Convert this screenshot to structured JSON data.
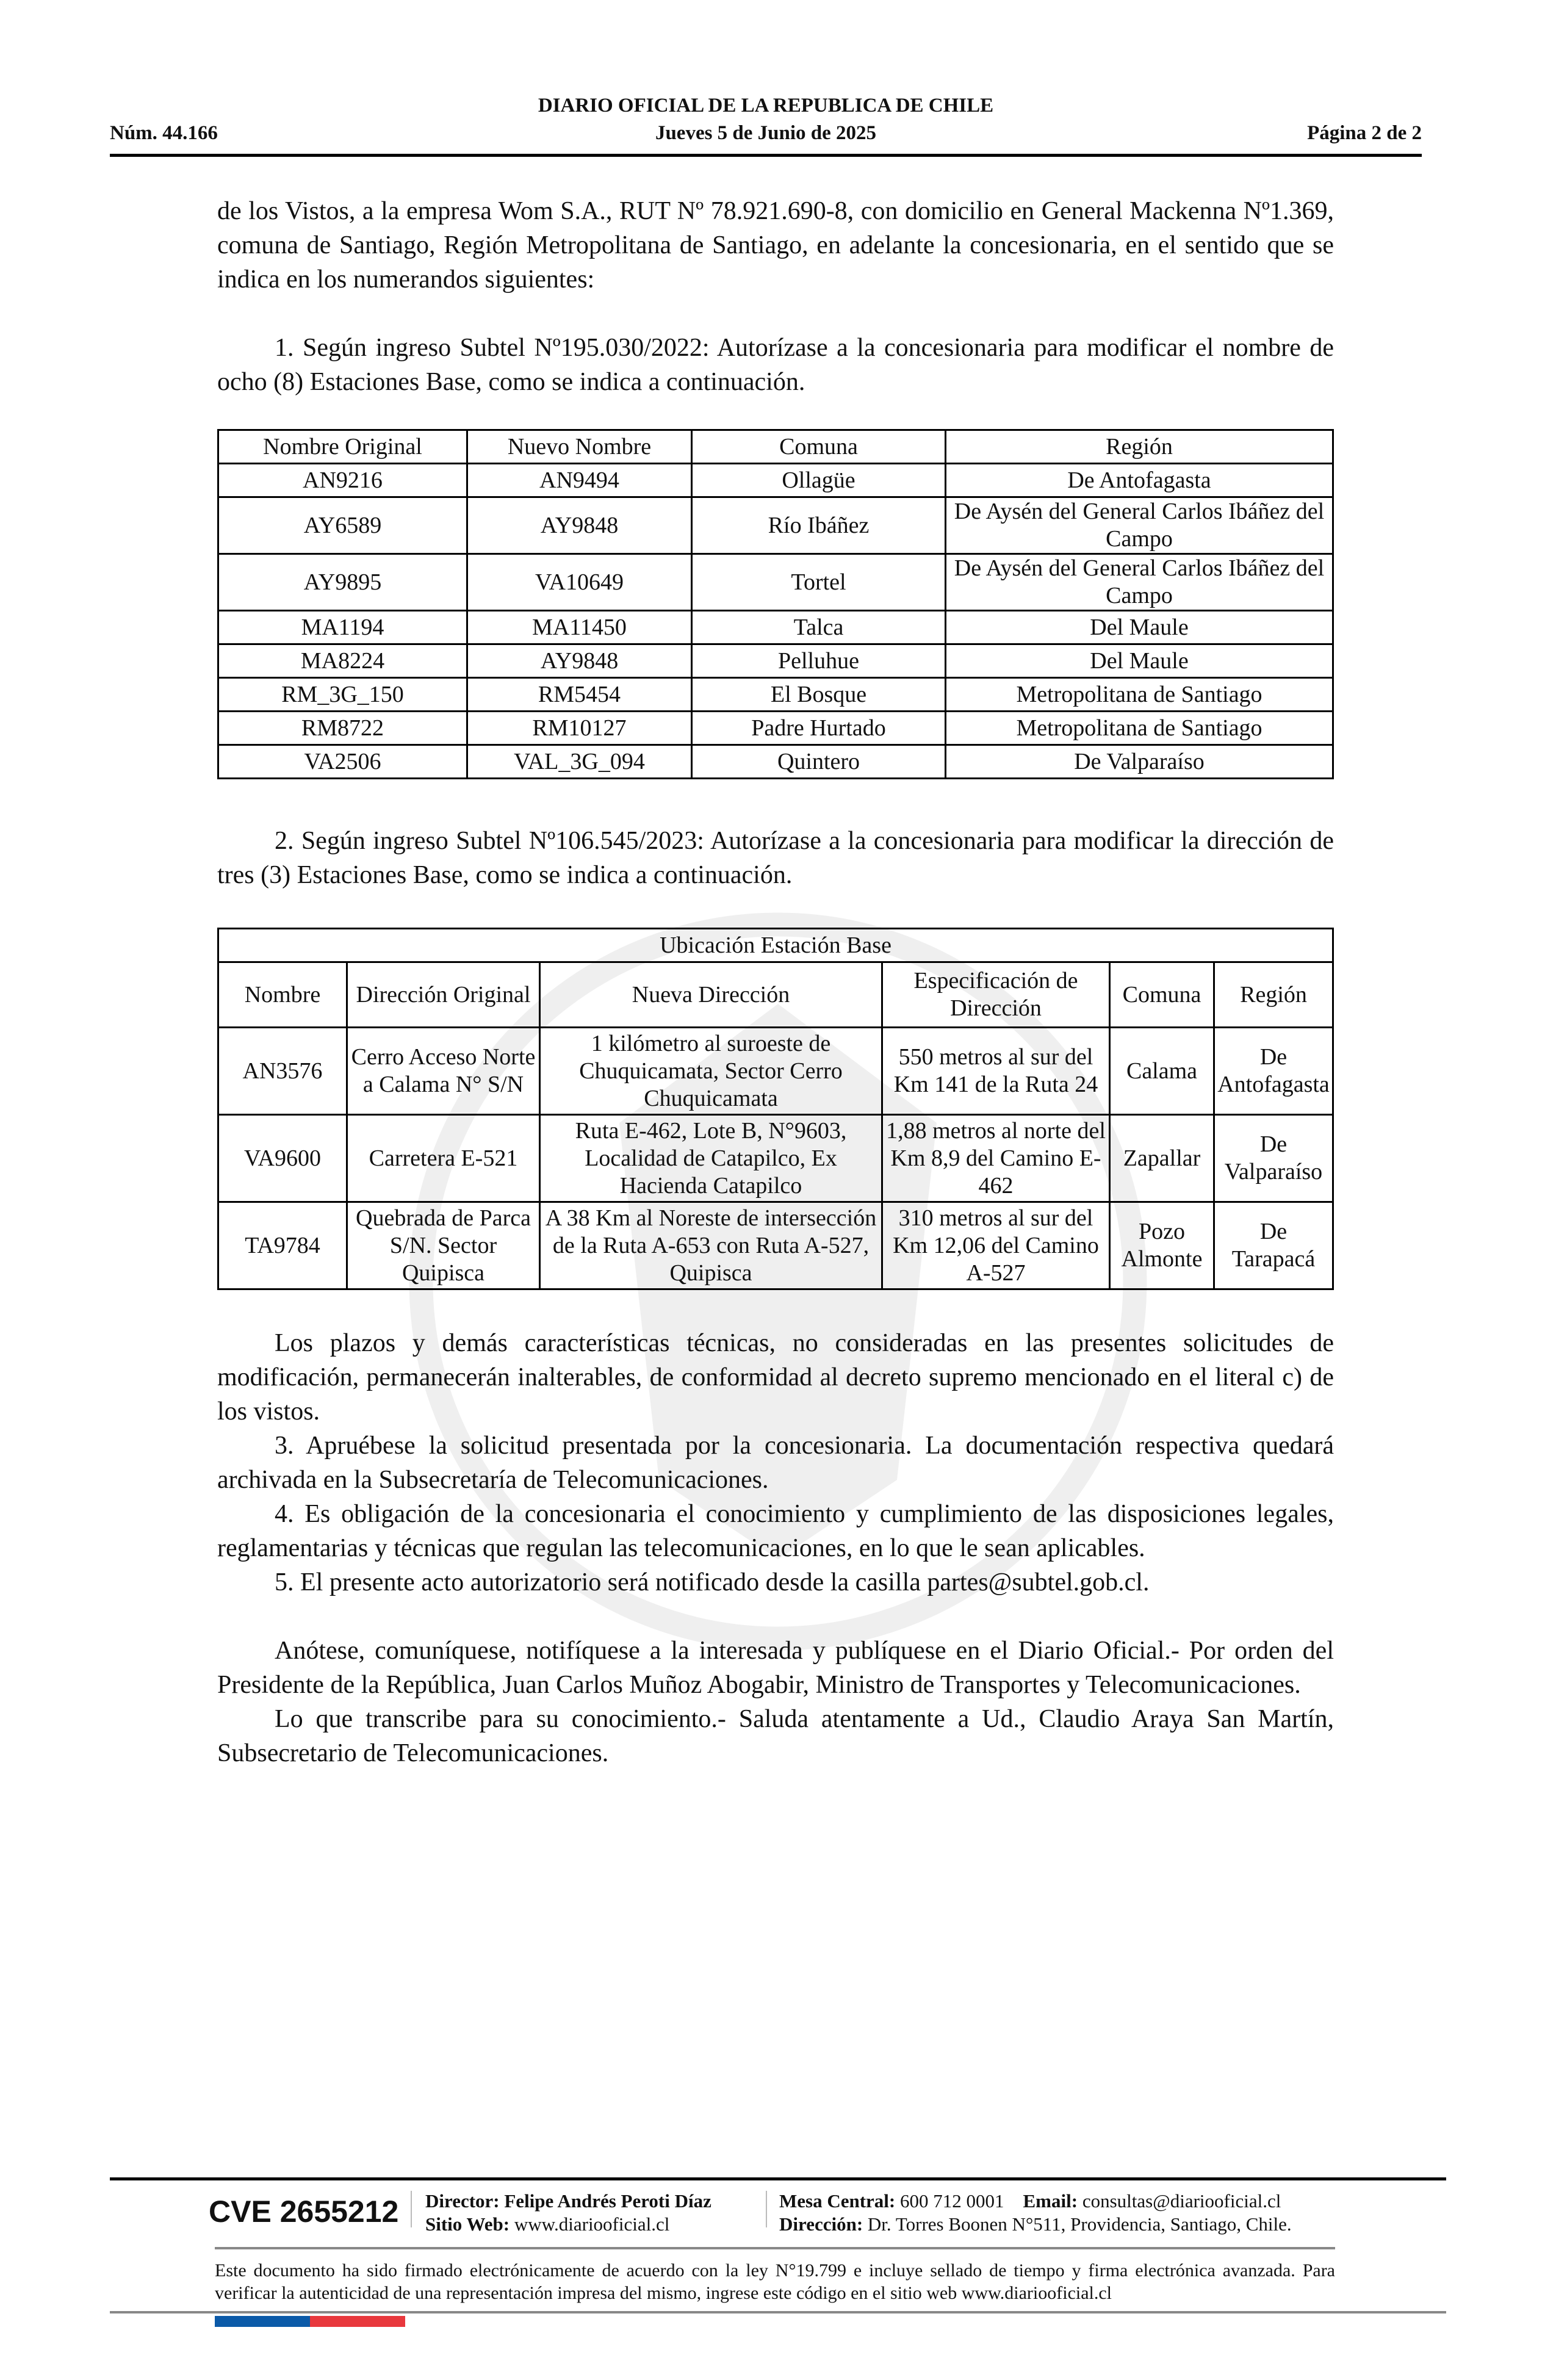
{
  "header": {
    "title": "DIARIO OFICIAL DE LA REPUBLICA DE CHILE",
    "number": "Núm. 44.166",
    "date": "Jueves 5 de Junio de 2025",
    "page": "Página 2 de 2"
  },
  "intro": "de los Vistos, a la empresa Wom S.A., RUT Nº 78.921.690-8, con domicilio en General Mackenna Nº1.369, comuna de Santiago, Región Metropolitana de Santiago, en adelante la concesionaria, en el sentido que se indica en los numerandos siguientes:",
  "item1": "1. Según ingreso Subtel Nº195.030/2022: Autorízase a la concesionaria para modificar el nombre de ocho (8) Estaciones Base, como se indica a continuación.",
  "table1": {
    "headers": [
      "Nombre Original",
      "Nuevo Nombre",
      "Comuna",
      "Región"
    ],
    "rows": [
      [
        "AN9216",
        "AN9494",
        "Ollagüe",
        "De Antofagasta"
      ],
      [
        "AY6589",
        "AY9848",
        "Río Ibáñez",
        "De Aysén del General Carlos Ibáñez del Campo"
      ],
      [
        "AY9895",
        "VA10649",
        "Tortel",
        "De Aysén del General Carlos Ibáñez del Campo"
      ],
      [
        "MA1194",
        "MA11450",
        "Talca",
        "Del Maule"
      ],
      [
        "MA8224",
        "AY9848",
        "Pelluhue",
        "Del Maule"
      ],
      [
        "RM_3G_150",
        "RM5454",
        "El Bosque",
        "Metropolitana de Santiago"
      ],
      [
        "RM8722",
        "RM10127",
        "Padre Hurtado",
        "Metropolitana de Santiago"
      ],
      [
        "VA2506",
        "VAL_3G_094",
        "Quintero",
        "De Valparaíso"
      ]
    ]
  },
  "item2": "2. Según ingreso Subtel Nº106.545/2023: Autorízase a la concesionaria para modificar la dirección de tres (3) Estaciones Base, como se indica a continuación.",
  "table2": {
    "caption": "Ubicación Estación Base",
    "headers": [
      "Nombre",
      "Dirección Original",
      "Nueva Dirección",
      "Especificación de Dirección",
      "Comuna",
      "Región"
    ],
    "rows": [
      [
        "AN3576",
        "Cerro Acceso Norte a Calama N° S/N",
        "1 kilómetro al suroeste de Chuquicamata, Sector Cerro Chuquicamata",
        "550 metros al sur del Km 141 de la Ruta 24",
        "Calama",
        "De Antofagasta"
      ],
      [
        "VA9600",
        "Carretera E-521",
        "Ruta E-462, Lote B, N°9603, Localidad de Catapilco, Ex Hacienda Catapilco",
        "1,88 metros al norte del Km 8,9 del Camino E-462",
        "Zapallar",
        "De Valparaíso"
      ],
      [
        "TA9784",
        "Quebrada de Parca S/N. Sector Quipisca",
        "A 38 Km al Noreste de intersección de la Ruta A-653 con Ruta A-527, Quipisca",
        "310 metros al sur del Km 12,06 del Camino A-527",
        "Pozo Almonte",
        "De Tarapacá"
      ]
    ]
  },
  "paragraphs": [
    "Los plazos y demás características técnicas, no consideradas en las presentes solicitudes de modificación, permanecerán inalterables, de conformidad al decreto supremo mencionado en el literal c) de los vistos.",
    "3. Apruébese la solicitud presentada por la concesionaria. La documentación respectiva quedará archivada en la Subsecretaría de Telecomunicaciones.",
    "4. Es obligación de la concesionaria el conocimiento y cumplimiento de las disposiciones legales, reglamentarias y técnicas que regulan las telecomunicaciones, en lo que le sean aplicables.",
    "5. El presente acto autorizatorio será notificado desde la casilla partes@subtel.gob.cl."
  ],
  "closing": [
    "Anótese, comuníquese, notifíquese a la interesada y publíquese en el Diario Oficial.- Por orden del Presidente de la República, Juan Carlos Muñoz Abogabir, Ministro de Transportes y Telecomunicaciones.",
    "Lo que transcribe para su conocimiento.- Saluda atentamente a Ud., Claudio Araya San Martín, Subsecretario de Telecomunicaciones."
  ],
  "footer": {
    "cve": "CVE 2655212",
    "director_label": "Director:",
    "director": "Felipe Andrés Peroti Díaz",
    "web_label": "Sitio Web:",
    "web": "www.diariooficial.cl",
    "phone_label": "Mesa Central:",
    "phone": "600 712 0001",
    "email_label": "Email:",
    "email": "consultas@diariooficial.cl",
    "address_label": "Dirección:",
    "address": "Dr. Torres Boonen N°511, Providencia, Santiago, Chile.",
    "legal": "Este documento ha sido firmado electrónicamente de acuerdo con la ley N°19.799 e incluye sellado de tiempo y firma electrónica avanzada. Para verificar la autenticidad de una representación impresa del mismo, ingrese este código en el sitio web www.diariooficial.cl",
    "flag_colors": [
      "#0b5aa8",
      "#e8383d"
    ]
  }
}
